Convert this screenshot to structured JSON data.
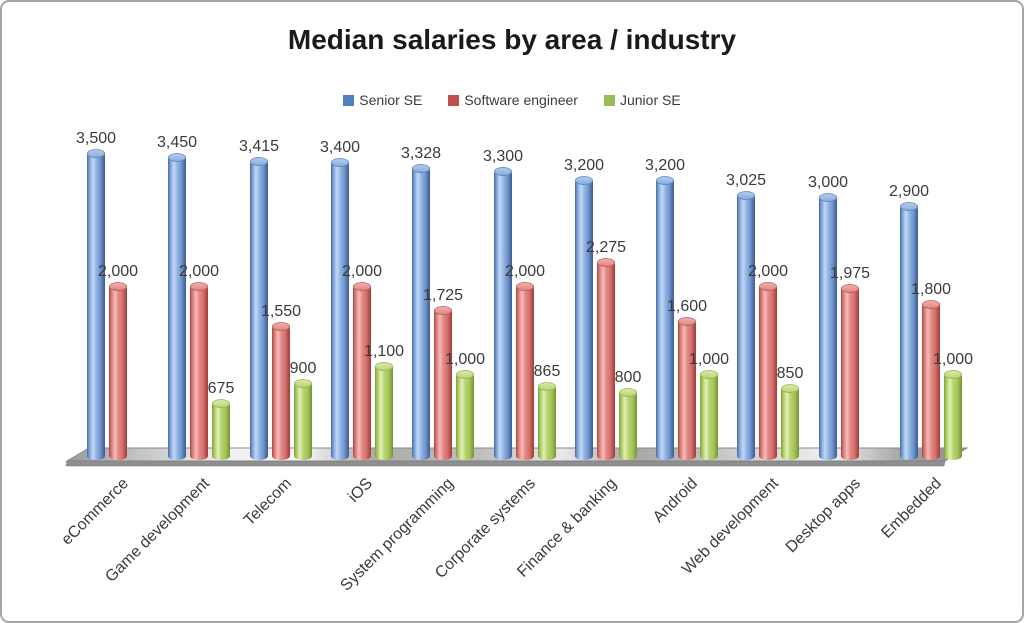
{
  "chart_data": {
    "type": "bar",
    "style": "3d-cylinder",
    "title": "Median salaries by area / industry",
    "categories": [
      "eCommerce",
      "Game development",
      "Telecom",
      "iOS",
      "System programming",
      "Corporate systems",
      "Finance & banking",
      "Android",
      "Web development",
      "Desktop apps",
      "Embedded"
    ],
    "series": [
      {
        "name": "Senior SE",
        "color": "#4f81bd",
        "values": [
          3500,
          3450,
          3415,
          3400,
          3328,
          3300,
          3200,
          3200,
          3025,
          3000,
          2900
        ]
      },
      {
        "name": "Software engineer",
        "color": "#c0504d",
        "values": [
          2000,
          2000,
          1550,
          2000,
          1725,
          2000,
          2275,
          1600,
          2000,
          1975,
          1800
        ]
      },
      {
        "name": "Junior SE",
        "color": "#9bbb59",
        "values": [
          null,
          675,
          900,
          1100,
          1000,
          865,
          800,
          1000,
          850,
          null,
          1000
        ]
      }
    ],
    "legend_position": "top",
    "value_labels": true,
    "ylim": [
      0,
      3500
    ],
    "grid": false,
    "floor_color": "#c0c0c0",
    "label_color": "#3b3b3b"
  }
}
